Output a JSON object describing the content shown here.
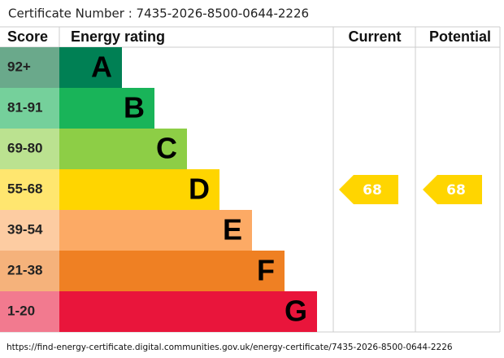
{
  "certificate": "Certificate Number : 7435-2026-8500-0644-2226",
  "header": {
    "score": "Score",
    "rating": "Energy rating",
    "current": "Current",
    "potential": "Potential"
  },
  "bands": [
    {
      "score": "92+",
      "letter": "A",
      "color": "#008054",
      "score_color": "#6aa98b"
    },
    {
      "score": "81-91",
      "letter": "B",
      "color": "#19b459",
      "score_color": "#75d09b"
    },
    {
      "score": "69-80",
      "letter": "C",
      "color": "#8dce46",
      "score_color": "#bbe290"
    },
    {
      "score": "55-68",
      "letter": "D",
      "color": "#ffd500",
      "score_color": "#ffe66f"
    },
    {
      "score": "39-54",
      "letter": "E",
      "color": "#fcaa65",
      "score_color": "#fdcca2"
    },
    {
      "score": "21-38",
      "letter": "F",
      "color": "#ef8023",
      "score_color": "#f5b27b"
    },
    {
      "score": "1-20",
      "letter": "G",
      "color": "#e9153b",
      "score_color": "#f27a8f"
    }
  ],
  "current": 68,
  "potential": 68,
  "url": "https://find-energy-certificate.digital.communities.gov.uk/energy-certificate/7435-2026-8500-0644-2226"
}
